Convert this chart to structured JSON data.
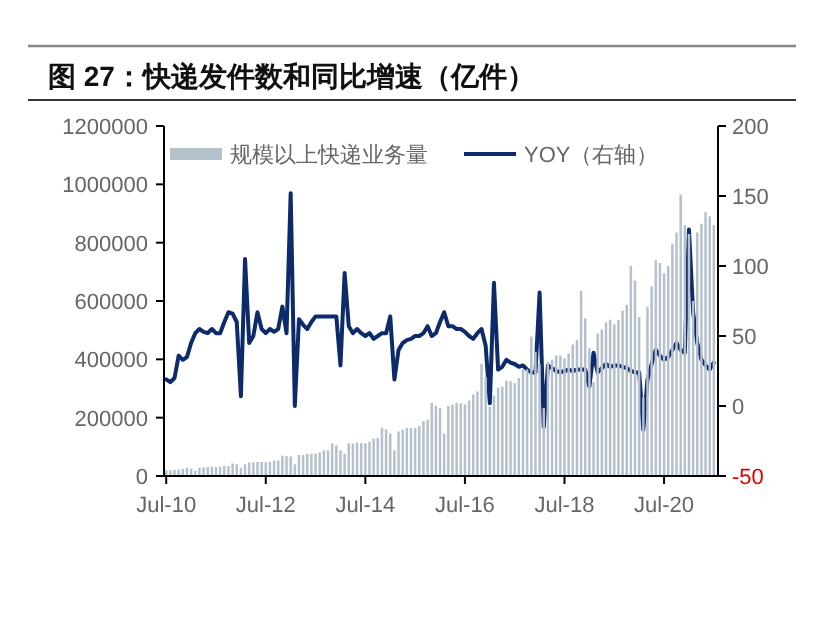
{
  "chart_data": {
    "type": "bar",
    "title": "图 27：快递发件数和同比增速（亿件）",
    "legend": "top",
    "x": [
      "2010-07",
      "2010-08",
      "2010-09",
      "2010-10",
      "2010-11",
      "2010-12",
      "2011-01",
      "2011-02",
      "2011-03",
      "2011-04",
      "2011-05",
      "2011-06",
      "2011-07",
      "2011-08",
      "2011-09",
      "2011-10",
      "2011-11",
      "2011-12",
      "2012-01",
      "2012-02",
      "2012-03",
      "2012-04",
      "2012-05",
      "2012-06",
      "2012-07",
      "2012-08",
      "2012-09",
      "2012-10",
      "2012-11",
      "2012-12",
      "2013-01",
      "2013-02",
      "2013-03",
      "2013-04",
      "2013-05",
      "2013-06",
      "2013-07",
      "2013-08",
      "2013-09",
      "2013-10",
      "2013-11",
      "2013-12",
      "2014-01",
      "2014-02",
      "2014-03",
      "2014-04",
      "2014-05",
      "2014-06",
      "2014-07",
      "2014-08",
      "2014-09",
      "2014-10",
      "2014-11",
      "2014-12",
      "2015-01",
      "2015-02",
      "2015-03",
      "2015-04",
      "2015-05",
      "2015-06",
      "2015-07",
      "2015-08",
      "2015-09",
      "2015-10",
      "2015-11",
      "2015-12",
      "2016-01",
      "2016-02",
      "2016-03",
      "2016-04",
      "2016-05",
      "2016-06",
      "2016-07",
      "2016-08",
      "2016-09",
      "2016-10",
      "2016-11",
      "2016-12",
      "2017-01",
      "2017-02",
      "2017-03",
      "2017-04",
      "2017-05",
      "2017-06",
      "2017-07",
      "2017-08",
      "2017-09",
      "2017-10",
      "2017-11",
      "2017-12",
      "2018-01",
      "2018-02",
      "2018-03",
      "2018-04",
      "2018-05",
      "2018-06",
      "2018-07",
      "2018-08",
      "2018-09",
      "2018-10",
      "2018-11",
      "2018-12",
      "2019-01",
      "2019-02",
      "2019-03",
      "2019-04",
      "2019-05",
      "2019-06",
      "2019-07",
      "2019-08",
      "2019-09",
      "2019-10",
      "2019-11",
      "2019-12",
      "2020-01",
      "2020-02",
      "2020-03",
      "2020-04",
      "2020-05",
      "2020-06",
      "2020-07",
      "2020-08",
      "2020-09",
      "2020-10",
      "2020-11",
      "2020-12",
      "2021-01",
      "2021-02",
      "2021-03",
      "2021-04",
      "2021-05",
      "2021-06",
      "2021-07"
    ],
    "series": [
      {
        "name": "规模以上快递业务量",
        "color": "#b4c0cc",
        "values": [
          19000,
          20000,
          21000,
          22000,
          24000,
          28000,
          25000,
          18000,
          28000,
          30000,
          31000,
          32000,
          31000,
          32000,
          34000,
          34000,
          43000,
          40000,
          27000,
          40000,
          46000,
          47000,
          48000,
          48000,
          47000,
          49000,
          53000,
          53000,
          70000,
          68000,
          67000,
          40000,
          72000,
          72000,
          76000,
          76000,
          77000,
          81000,
          88000,
          88000,
          112000,
          105000,
          88000,
          76000,
          112000,
          111000,
          115000,
          113000,
          112000,
          118000,
          128000,
          131000,
          166000,
          160000,
          146000,
          88000,
          153000,
          159000,
          165000,
          164000,
          164000,
          171000,
          188000,
          193000,
          251000,
          241000,
          233000,
          146000,
          240000,
          244000,
          251000,
          249000,
          246000,
          259000,
          280000,
          290000,
          385000,
          339000,
          237000,
          276000,
          303000,
          307000,
          327000,
          325000,
          318000,
          336000,
          366000,
          366000,
          478000,
          426000,
          384000,
          233000,
          392000,
          399000,
          413000,
          413000,
          403000,
          420000,
          451000,
          466000,
          635000,
          540000,
          438000,
          322000,
          488000,
          502000,
          527000,
          536000,
          520000,
          535000,
          567000,
          587000,
          720000,
          670000,
          545000,
          270000,
          580000,
          650000,
          740000,
          730000,
          695000,
          720000,
          795000,
          835000,
          965000,
          860000,
          830000,
          600000,
          835000,
          865000,
          905000,
          890000,
          860000
        ]
      },
      {
        "name": "YOY（右轴）",
        "type": "line",
        "axis": "y2",
        "color": "#0d2a6b",
        "values": [
          19,
          17,
          20,
          36,
          33,
          35,
          45,
          52,
          55,
          53,
          52,
          55,
          52,
          52,
          60,
          67,
          66,
          60,
          7,
          105,
          45,
          50,
          67,
          55,
          52,
          55,
          53,
          55,
          71,
          52,
          152,
          0,
          62,
          58,
          55,
          60,
          64,
          64,
          64,
          64,
          64,
          64,
          29,
          95,
          57,
          52,
          55,
          52,
          50,
          52,
          48,
          50,
          52,
          52,
          64,
          19,
          40,
          45,
          47,
          48,
          50,
          50,
          52,
          57,
          50,
          52,
          60,
          67,
          57,
          57,
          55,
          55,
          53,
          50,
          48,
          52,
          55,
          43,
          2,
          88,
          26,
          28,
          33,
          31,
          30,
          28,
          29,
          26,
          24,
          24,
          81,
          -15,
          29,
          27,
          25,
          24,
          25,
          26,
          25,
          26,
          26,
          26,
          14,
          38,
          24,
          27,
          30,
          28,
          29,
          29,
          28,
          27,
          25,
          24,
          24,
          -17,
          19,
          30,
          40,
          36,
          33,
          35,
          40,
          45,
          40,
          38,
          126,
          67,
          45,
          33,
          29,
          26,
          31
        ]
      }
    ],
    "xlim": [
      "2010-06-15",
      "2021-08"
    ],
    "xticks": [
      {
        "value": "2010-07",
        "label": "Jul-10"
      },
      {
        "value": "2012-07",
        "label": "Jul-12"
      },
      {
        "value": "2014-07",
        "label": "Jul-14"
      },
      {
        "value": "2016-07",
        "label": "Jul-16"
      },
      {
        "value": "2018-07",
        "label": "Jul-18"
      },
      {
        "value": "2020-07",
        "label": "Jul-20"
      }
    ],
    "ylim": [
      0,
      1200000
    ],
    "yticks": [
      0,
      200000,
      400000,
      600000,
      800000,
      1000000,
      1200000
    ],
    "y2lim": [
      -50,
      200
    ],
    "y2ticks": [
      -50,
      0,
      50,
      100,
      150,
      200
    ]
  }
}
